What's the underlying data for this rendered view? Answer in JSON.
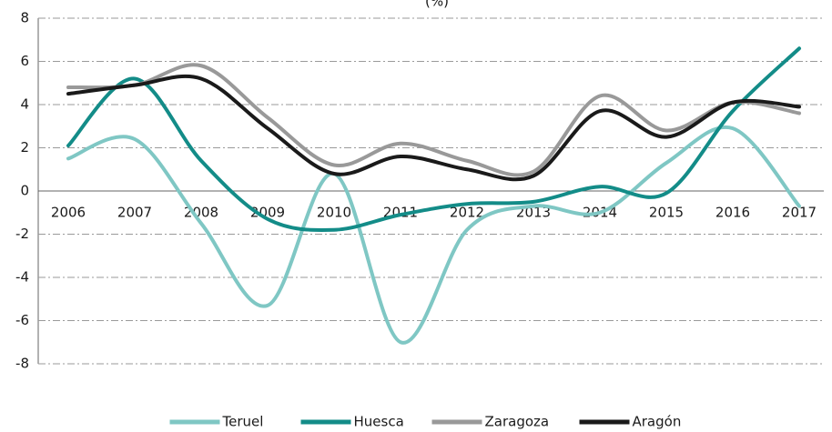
{
  "chart_data": {
    "type": "line",
    "title": "(%)",
    "categories": [
      "2006",
      "2007",
      "2008",
      "2009",
      "2010",
      "2011",
      "2012",
      "2013",
      "2014",
      "2015",
      "2016",
      "2017"
    ],
    "series": [
      {
        "name": "Teruel",
        "color": "#7fc7c4",
        "values": [
          1.5,
          2.4,
          -1.5,
          -5.3,
          0.8,
          -7.0,
          -1.8,
          -0.7,
          -1.0,
          1.3,
          2.9,
          -0.7
        ]
      },
      {
        "name": "Huesca",
        "color": "#138c88",
        "values": [
          2.1,
          5.2,
          1.4,
          -1.3,
          -1.8,
          -1.1,
          -0.6,
          -0.5,
          0.2,
          -0.1,
          3.7,
          6.6
        ]
      },
      {
        "name": "Zaragoza",
        "color": "#999999",
        "values": [
          4.8,
          4.9,
          5.8,
          3.4,
          1.2,
          2.2,
          1.4,
          0.9,
          4.4,
          2.8,
          4.1,
          3.6
        ]
      },
      {
        "name": "Aragón",
        "color": "#1a1a1a",
        "values": [
          4.5,
          4.9,
          5.2,
          2.9,
          0.8,
          1.6,
          1.0,
          0.7,
          3.7,
          2.5,
          4.1,
          3.9
        ]
      }
    ],
    "ylim": [
      -8,
      8
    ],
    "yticks": [
      -8,
      -6,
      -4,
      -2,
      0,
      2,
      4,
      6,
      8
    ],
    "grid": true,
    "legend": "bottom"
  }
}
